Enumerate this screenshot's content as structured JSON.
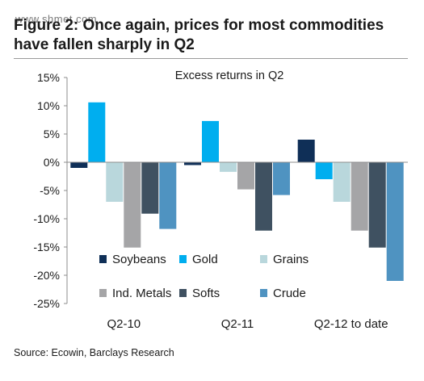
{
  "figure": {
    "title": "Figure 2: Once again, prices for most commodities have fallen sharply in Q2",
    "watermark": "www.shmet.com",
    "source": "Source: Ecowin, Barclays Research"
  },
  "chart_data": {
    "type": "bar",
    "title": "Excess returns in Q2",
    "categories": [
      "Q2-10",
      "Q2-11",
      "Q2-12 to date"
    ],
    "ylim": [
      -25,
      15
    ],
    "yticks": [
      15,
      10,
      5,
      0,
      -5,
      -10,
      -15,
      -20,
      -25
    ],
    "ytick_labels": [
      "15%",
      "10%",
      "5%",
      "0%",
      "-5%",
      "-10%",
      "-15%",
      "-20%",
      "-25%"
    ],
    "grid": false,
    "legend_position": "bottom-inside",
    "series": [
      {
        "name": "Soybeans",
        "color": "#0f2f57",
        "values": [
          -1,
          -0.5,
          4
        ]
      },
      {
        "name": "Gold",
        "color": "#00aeef",
        "values": [
          10.6,
          7.3,
          -3
        ]
      },
      {
        "name": "Grains",
        "color": "#b9d7dc",
        "values": [
          -7,
          -1.7,
          -7
        ]
      },
      {
        "name": "Ind. Metals",
        "color": "#a5a5a7",
        "values": [
          -15.1,
          -4.8,
          -12.1
        ]
      },
      {
        "name": "Softs",
        "color": "#3f5161",
        "values": [
          -9.1,
          -12.1,
          -15.1
        ]
      },
      {
        "name": "Crude",
        "color": "#4f93c1",
        "values": [
          -11.8,
          -5.8,
          -21
        ]
      }
    ]
  }
}
